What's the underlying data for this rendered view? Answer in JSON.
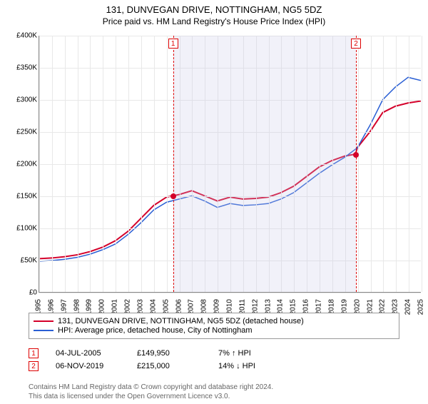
{
  "title": "131, DUNVEGAN DRIVE, NOTTINGHAM, NG5 5DZ",
  "subtitle": "Price paid vs. HM Land Registry's House Price Index (HPI)",
  "chart": {
    "type": "line",
    "background_color": "#ffffff",
    "grid_color": "#e8e8e8",
    "axis_color": "#888888",
    "ylim": [
      0,
      400000
    ],
    "ytick_step": 50000,
    "yticks": [
      "£0",
      "£50K",
      "£100K",
      "£150K",
      "£200K",
      "£250K",
      "£300K",
      "£350K",
      "£400K"
    ],
    "xlim": [
      1995,
      2025
    ],
    "xticks": [
      1995,
      1996,
      1997,
      1998,
      1999,
      2000,
      2001,
      2002,
      2003,
      2004,
      2005,
      2006,
      2007,
      2008,
      2009,
      2010,
      2011,
      2012,
      2013,
      2014,
      2015,
      2016,
      2017,
      2018,
      2019,
      2020,
      2021,
      2022,
      2023,
      2024,
      2025
    ],
    "shade_band": {
      "x_start": 2005.5,
      "x_end": 2019.85,
      "color": "rgba(200,200,230,0.25)"
    },
    "series": [
      {
        "name": "property",
        "color": "#d4002a",
        "line_width": 2,
        "points": [
          [
            1995,
            52000
          ],
          [
            1996,
            53000
          ],
          [
            1997,
            55000
          ],
          [
            1998,
            58000
          ],
          [
            1999,
            63000
          ],
          [
            2000,
            70000
          ],
          [
            2001,
            80000
          ],
          [
            2002,
            95000
          ],
          [
            2003,
            115000
          ],
          [
            2004,
            135000
          ],
          [
            2005,
            148000
          ],
          [
            2005.5,
            149950
          ],
          [
            2006,
            152000
          ],
          [
            2007,
            158000
          ],
          [
            2008,
            150000
          ],
          [
            2009,
            142000
          ],
          [
            2010,
            148000
          ],
          [
            2011,
            145000
          ],
          [
            2012,
            146000
          ],
          [
            2013,
            148000
          ],
          [
            2014,
            155000
          ],
          [
            2015,
            165000
          ],
          [
            2016,
            180000
          ],
          [
            2017,
            195000
          ],
          [
            2018,
            205000
          ],
          [
            2019,
            212000
          ],
          [
            2019.85,
            215000
          ],
          [
            2020,
            225000
          ],
          [
            2021,
            250000
          ],
          [
            2022,
            280000
          ],
          [
            2023,
            290000
          ],
          [
            2024,
            295000
          ],
          [
            2025,
            298000
          ]
        ]
      },
      {
        "name": "hpi",
        "color": "#2a5fd4",
        "line_width": 1.5,
        "points": [
          [
            1995,
            48000
          ],
          [
            1996,
            49000
          ],
          [
            1997,
            51000
          ],
          [
            1998,
            54000
          ],
          [
            1999,
            59000
          ],
          [
            2000,
            66000
          ],
          [
            2001,
            75000
          ],
          [
            2002,
            90000
          ],
          [
            2003,
            108000
          ],
          [
            2004,
            128000
          ],
          [
            2005,
            140000
          ],
          [
            2006,
            145000
          ],
          [
            2007,
            150000
          ],
          [
            2008,
            142000
          ],
          [
            2009,
            132000
          ],
          [
            2010,
            138000
          ],
          [
            2011,
            135000
          ],
          [
            2012,
            136000
          ],
          [
            2013,
            138000
          ],
          [
            2014,
            145000
          ],
          [
            2015,
            155000
          ],
          [
            2016,
            170000
          ],
          [
            2017,
            185000
          ],
          [
            2018,
            198000
          ],
          [
            2019,
            210000
          ],
          [
            2020,
            225000
          ],
          [
            2021,
            260000
          ],
          [
            2022,
            300000
          ],
          [
            2023,
            320000
          ],
          [
            2024,
            335000
          ],
          [
            2025,
            330000
          ]
        ]
      }
    ],
    "markers": [
      {
        "n": "1",
        "x": 2005.5,
        "y": 149950,
        "color": "#d4002a"
      },
      {
        "n": "2",
        "x": 2019.85,
        "y": 215000,
        "color": "#d4002a"
      }
    ]
  },
  "legend": {
    "items": [
      {
        "color": "#d4002a",
        "label": "131, DUNVEGAN DRIVE, NOTTINGHAM, NG5 5DZ (detached house)"
      },
      {
        "color": "#2a5fd4",
        "label": "HPI: Average price, detached house, City of Nottingham"
      }
    ]
  },
  "transactions": [
    {
      "n": "1",
      "date": "04-JUL-2005",
      "price": "£149,950",
      "delta": "7% ↑ HPI"
    },
    {
      "n": "2",
      "date": "06-NOV-2019",
      "price": "£215,000",
      "delta": "14% ↓ HPI"
    }
  ],
  "footer": {
    "line1": "Contains HM Land Registry data © Crown copyright and database right 2024.",
    "line2": "This data is licensed under the Open Government Licence v3.0."
  }
}
